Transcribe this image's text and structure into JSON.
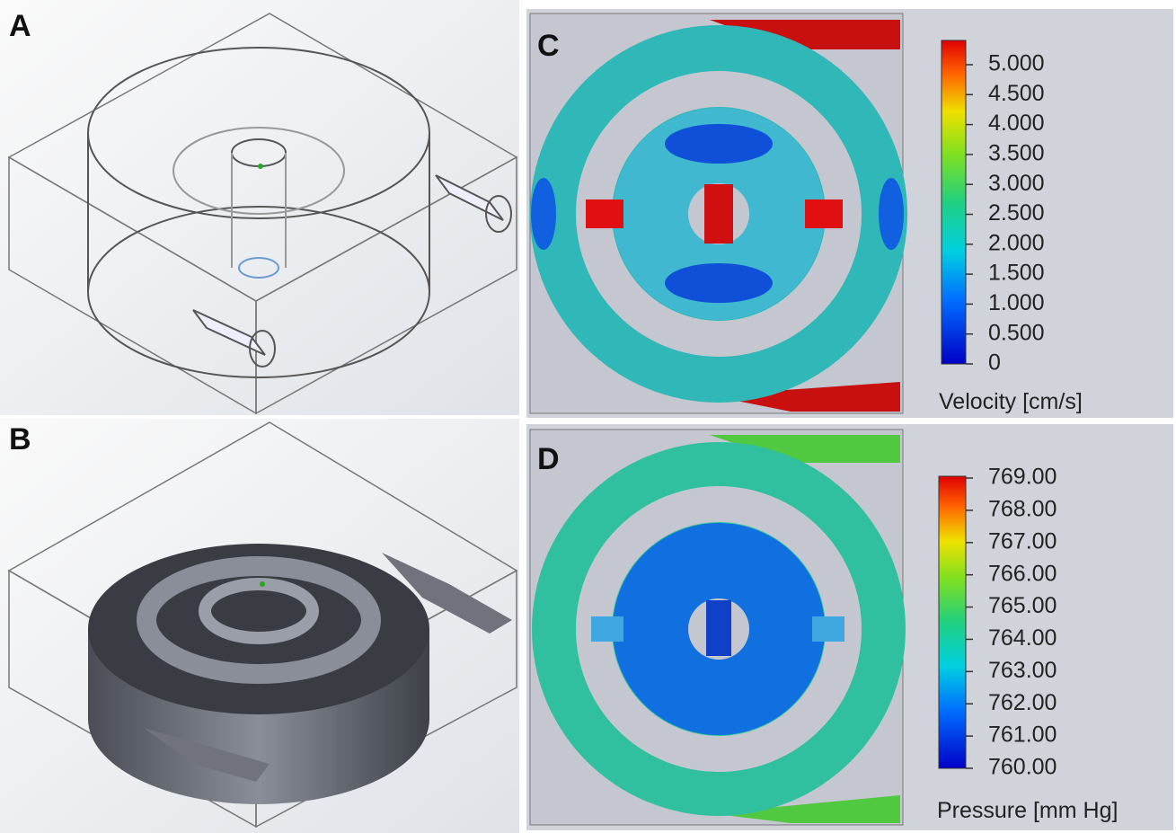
{
  "panels": [
    {
      "label": "A"
    },
    {
      "label": "B"
    },
    {
      "label": "C",
      "colorbar": {
        "title": "Velocity [cm/s]",
        "ticks": [
          "5.000",
          "4.500",
          "4.000",
          "3.500",
          "3.000",
          "2.500",
          "2.000",
          "1.500",
          "1.000",
          "0.500",
          "0"
        ]
      }
    },
    {
      "label": "D",
      "colorbar": {
        "title": "Pressure [mm Hg]",
        "ticks": [
          "769.00",
          "768.00",
          "767.00",
          "766.00",
          "765.00",
          "764.00",
          "763.00",
          "762.00",
          "761.00",
          "760.00"
        ]
      }
    }
  ]
}
